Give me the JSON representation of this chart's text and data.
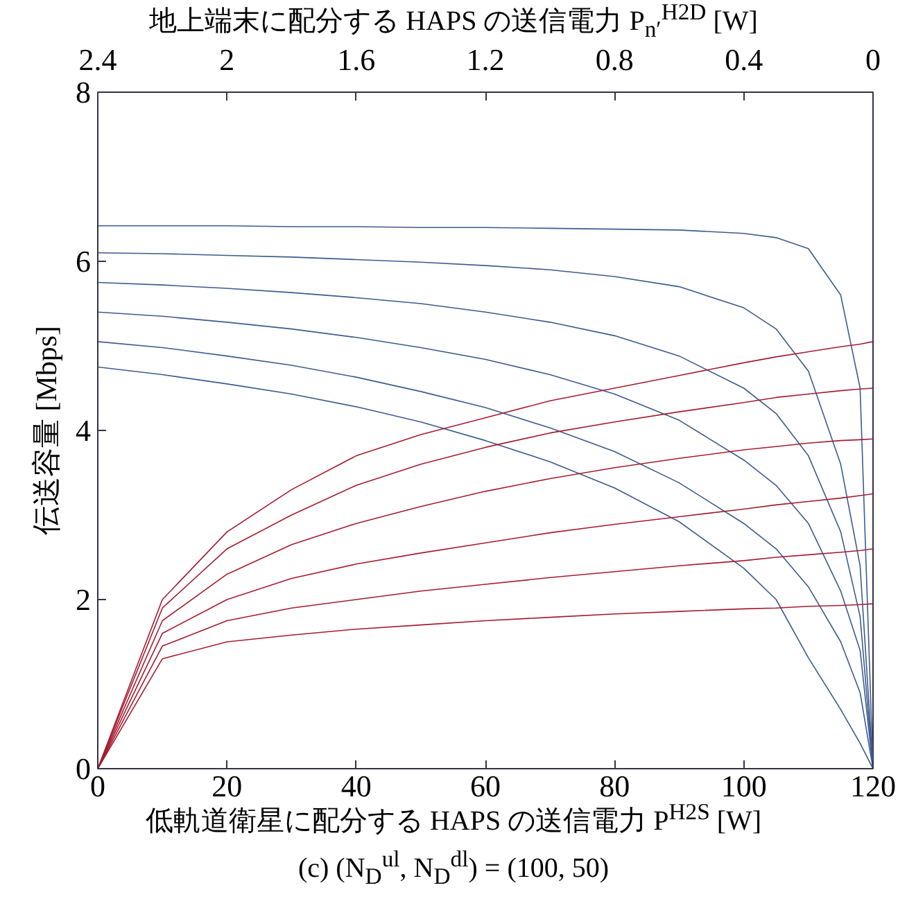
{
  "chart_data": {
    "type": "line",
    "x": [
      0,
      10,
      20,
      30,
      40,
      50,
      60,
      70,
      80,
      90,
      100,
      105,
      110,
      115,
      118,
      120
    ],
    "series": [
      {
        "color": "#3b5b8f",
        "values": [
          6.42,
          6.42,
          6.42,
          6.41,
          6.41,
          6.4,
          6.4,
          6.39,
          6.38,
          6.37,
          6.33,
          6.28,
          6.15,
          5.6,
          4.5,
          0
        ]
      },
      {
        "color": "#3b5b8f",
        "values": [
          6.1,
          6.09,
          6.07,
          6.05,
          6.02,
          5.99,
          5.95,
          5.9,
          5.82,
          5.7,
          5.45,
          5.2,
          4.7,
          3.6,
          2.4,
          0
        ]
      },
      {
        "color": "#3b5b8f",
        "values": [
          5.75,
          5.72,
          5.68,
          5.63,
          5.57,
          5.5,
          5.4,
          5.28,
          5.12,
          4.88,
          4.5,
          4.2,
          3.7,
          2.8,
          1.8,
          0
        ]
      },
      {
        "color": "#3b5b8f",
        "values": [
          5.4,
          5.35,
          5.28,
          5.2,
          5.1,
          4.98,
          4.84,
          4.66,
          4.43,
          4.12,
          3.65,
          3.35,
          2.9,
          2.1,
          1.4,
          0
        ]
      },
      {
        "color": "#3b5b8f",
        "values": [
          5.05,
          4.98,
          4.88,
          4.77,
          4.63,
          4.46,
          4.27,
          4.03,
          3.75,
          3.38,
          2.9,
          2.6,
          2.15,
          1.5,
          0.9,
          0
        ]
      },
      {
        "color": "#3b5b8f",
        "values": [
          4.75,
          4.66,
          4.55,
          4.43,
          4.28,
          4.1,
          3.88,
          3.63,
          3.32,
          2.92,
          2.37,
          2.0,
          1.31,
          0.7,
          0.3,
          0
        ]
      },
      {
        "color": "#a51c30",
        "values": [
          0,
          1.3,
          1.5,
          1.58,
          1.65,
          1.7,
          1.75,
          1.79,
          1.83,
          1.86,
          1.89,
          1.9,
          1.92,
          1.93,
          1.94,
          1.95
        ]
      },
      {
        "color": "#a51c30",
        "values": [
          0,
          1.45,
          1.75,
          1.9,
          2.0,
          2.1,
          2.18,
          2.26,
          2.33,
          2.4,
          2.46,
          2.5,
          2.53,
          2.56,
          2.58,
          2.6
        ]
      },
      {
        "color": "#a51c30",
        "values": [
          0,
          1.6,
          2.0,
          2.25,
          2.42,
          2.55,
          2.67,
          2.79,
          2.89,
          2.98,
          3.07,
          3.12,
          3.16,
          3.2,
          3.23,
          3.25
        ]
      },
      {
        "color": "#a51c30",
        "values": [
          0,
          1.75,
          2.3,
          2.65,
          2.9,
          3.1,
          3.28,
          3.43,
          3.56,
          3.67,
          3.77,
          3.81,
          3.85,
          3.88,
          3.89,
          3.9
        ]
      },
      {
        "color": "#a51c30",
        "values": [
          0,
          1.9,
          2.6,
          3.0,
          3.35,
          3.6,
          3.8,
          3.97,
          4.1,
          4.22,
          4.33,
          4.39,
          4.43,
          4.47,
          4.49,
          4.5
        ]
      },
      {
        "color": "#a51c30",
        "values": [
          0,
          2.0,
          2.8,
          3.3,
          3.7,
          3.95,
          4.15,
          4.35,
          4.5,
          4.65,
          4.8,
          4.87,
          4.93,
          4.99,
          5.02,
          5.05
        ]
      }
    ],
    "xlabel": "低軌道衛星に配分する HAPS の送信電力 P$^{H2S}$ [W]",
    "x2label": "地上端末に配分する HAPS の送信電力 P$_{n′}$$^{H2D}$ [W]",
    "ylabel": "伝送容量 [Mbps]",
    "xlim": [
      0,
      120
    ],
    "xticks": [
      0,
      20,
      40,
      60,
      80,
      100,
      120
    ],
    "x2lim": [
      2.4,
      0
    ],
    "x2ticks": [
      2.4,
      2,
      1.6,
      1.2,
      0.8,
      0.4,
      0
    ],
    "ylim": [
      0,
      8
    ],
    "yticks": [
      0,
      2,
      4,
      6,
      8
    ],
    "grid": false,
    "marker": "none",
    "line_style": "solid",
    "annotations": [
      "(c) (N$_{D}$$^{ul}$, N$_{D}$$^{dl}$) = (100, 50)"
    ]
  }
}
